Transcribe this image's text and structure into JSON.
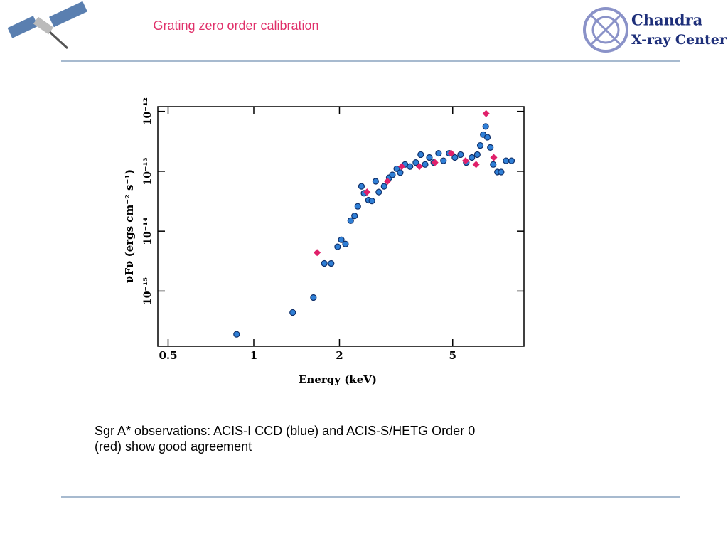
{
  "header": {
    "title": "Grating zero order calibration",
    "logo": [
      "Chandra",
      "X-ray Center"
    ]
  },
  "caption": [
    "Sgr A* observations:  ACIS-I CCD (blue) and ACIS-S/HETG Order 0",
    "(red) show good agreement"
  ],
  "chart_data": {
    "type": "scatter",
    "xlabel": "Energy (keV)",
    "ylabel": "νFν  (ergs cm⁻² s⁻¹)",
    "xscale": "log",
    "yscale": "log",
    "xlim": [
      0.46,
      8.9
    ],
    "ylim": [
      1.2e-16,
      1.2e-12
    ],
    "xticks": [
      0.5,
      1,
      2,
      5
    ],
    "yticks": [
      {
        "value": 1e-12,
        "label": "10⁻¹²"
      },
      {
        "value": 1e-13,
        "label": "10⁻¹³"
      },
      {
        "value": 1e-14,
        "label": "10⁻¹⁴"
      },
      {
        "value": 1e-15,
        "label": "10⁻¹⁵"
      }
    ],
    "series": [
      {
        "name": "ACIS-I CCD",
        "color": "#2f7fd6",
        "x": [
          0.87,
          1.37,
          1.62,
          1.77,
          1.87,
          1.97,
          2.03,
          2.1,
          2.19,
          2.26,
          2.32,
          2.39,
          2.44,
          2.53,
          2.6,
          2.68,
          2.75,
          2.87,
          2.99,
          3.07,
          3.18,
          3.27,
          3.4,
          3.54,
          3.71,
          3.86,
          4.0,
          4.14,
          4.29,
          4.46,
          4.64,
          4.86,
          5.09,
          5.33,
          5.58,
          5.84,
          6.1,
          6.25,
          6.4,
          6.53,
          6.62,
          6.78,
          6.94,
          7.18,
          7.4,
          7.7,
          8.05
        ],
        "values": [
          1.9e-16,
          4.4e-16,
          7.8e-16,
          2.9e-15,
          2.9e-15,
          5.5e-15,
          7.2e-15,
          6.1e-15,
          1.5e-14,
          1.8e-14,
          2.6e-14,
          5.6e-14,
          4.3e-14,
          3.3e-14,
          3.2e-14,
          6.8e-14,
          4.5e-14,
          5.6e-14,
          7.8e-14,
          8.7e-14,
          1.1e-13,
          9.5e-14,
          1.3e-13,
          1.2e-13,
          1.4e-13,
          1.9e-13,
          1.3e-13,
          1.7e-13,
          1.4e-13,
          2e-13,
          1.5e-13,
          2e-13,
          1.7e-13,
          1.9e-13,
          1.4e-13,
          1.7e-13,
          1.9e-13,
          2.7e-13,
          4.1e-13,
          5.6e-13,
          3.7e-13,
          2.5e-13,
          1.3e-13,
          9.7e-14,
          9.7e-14,
          1.5e-13,
          1.5e-13
        ]
      },
      {
        "name": "ACIS-S/HETG Order 0",
        "color": "#e0206a",
        "x": [
          1.67,
          2.5,
          2.95,
          3.31,
          3.82,
          4.33,
          4.94,
          5.55,
          6.04,
          6.55,
          6.97
        ],
        "values": [
          4.4e-15,
          4.5e-14,
          6.8e-14,
          1.2e-13,
          1.2e-13,
          1.4e-13,
          2e-13,
          1.5e-13,
          1.3e-13,
          9.2e-13,
          1.7e-13
        ]
      }
    ]
  }
}
